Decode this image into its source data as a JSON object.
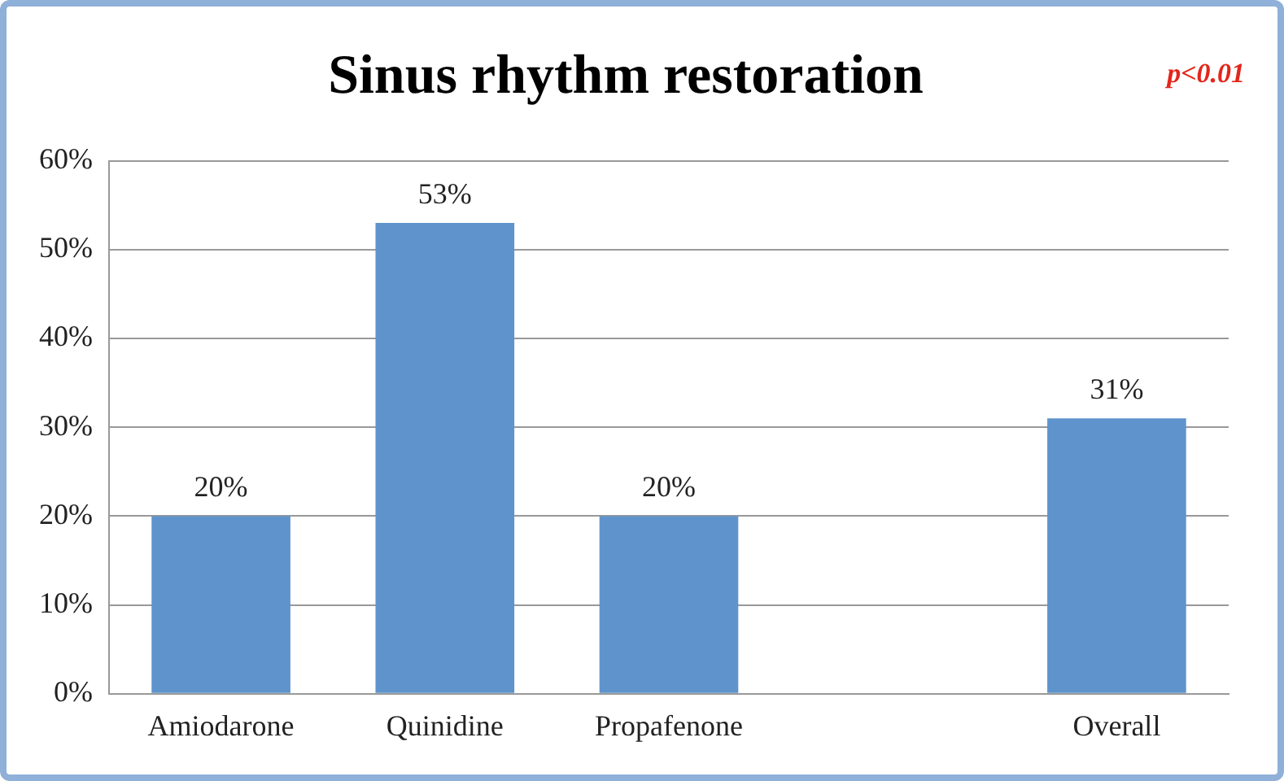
{
  "chart_data": {
    "type": "bar",
    "title": "Sinus rhythm restoration",
    "categories": [
      "Amiodarone",
      "Quinidine",
      "Propafenone",
      null,
      "Overall"
    ],
    "values": [
      20,
      53,
      20,
      null,
      31
    ],
    "value_labels": [
      "20%",
      "53%",
      "20%",
      null,
      "31%"
    ],
    "color": "#5f93cc",
    "ylim": [
      0,
      60
    ],
    "yticks": [
      {
        "value": 0,
        "label": "0%"
      },
      {
        "value": 10,
        "label": "10%"
      },
      {
        "value": 20,
        "label": "20%"
      },
      {
        "value": 30,
        "label": "30%"
      },
      {
        "value": 40,
        "label": "40%"
      },
      {
        "value": 50,
        "label": "50%"
      },
      {
        "value": 60,
        "label": "60%"
      }
    ],
    "grid": "y",
    "legend": false,
    "annotations": [
      "p<0.01"
    ]
  }
}
